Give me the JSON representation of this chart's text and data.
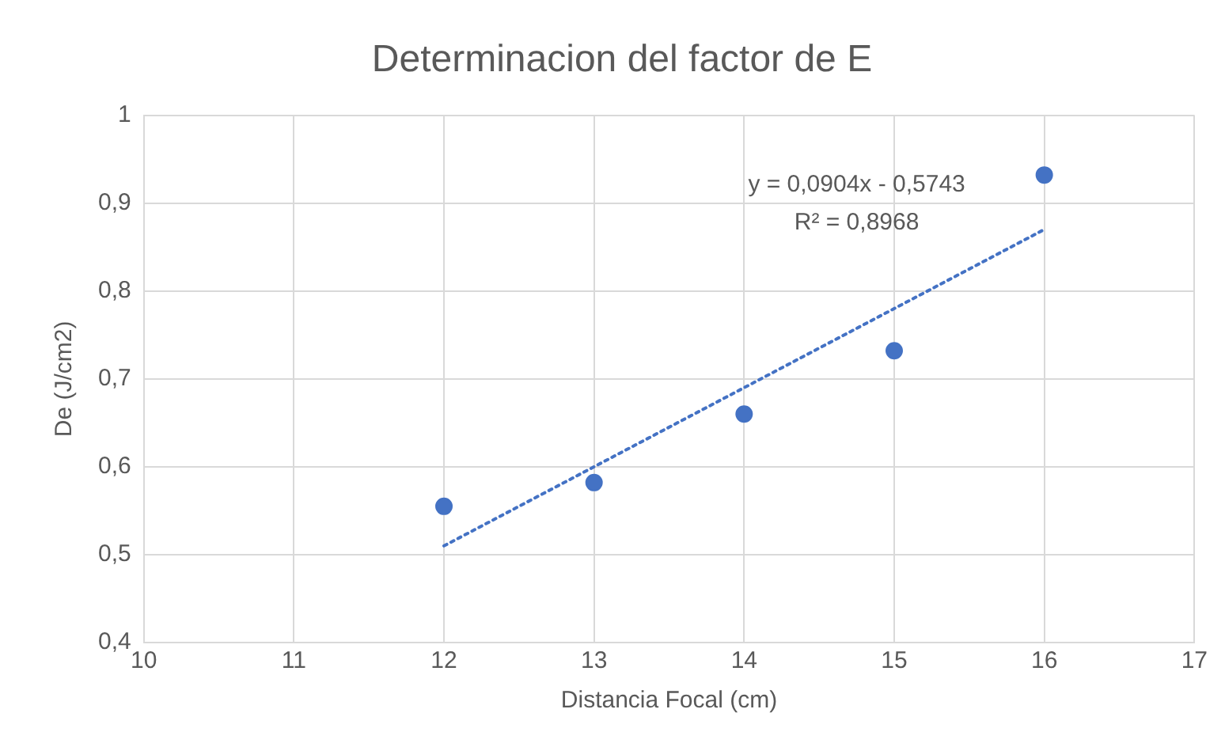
{
  "chart_data": {
    "type": "scatter",
    "title": "Determinacion del factor de E",
    "xlabel": "Distancia Focal (cm)",
    "ylabel": "De (J/cm2)",
    "x": [
      12,
      13,
      14,
      15,
      16
    ],
    "series": [
      {
        "type": "scatter",
        "color": "#4472c4",
        "marker": "circle",
        "values": [
          0.555,
          0.582,
          0.66,
          0.732,
          0.932
        ]
      },
      {
        "type": "line",
        "color": "#4472c4",
        "line_style": "dotted",
        "marker": "none",
        "x": [
          12,
          16
        ],
        "values": [
          0.51,
          0.87
        ]
      }
    ],
    "xlim": [
      10,
      17
    ],
    "xticks": [
      10,
      11,
      12,
      13,
      14,
      15,
      16,
      17
    ],
    "ylim": [
      0.4,
      1
    ],
    "yticks": [
      {
        "value": 0.4,
        "label": "0,4"
      },
      {
        "value": 0.5,
        "label": "0,5"
      },
      {
        "value": 0.6,
        "label": "0,6"
      },
      {
        "value": 0.7,
        "label": "0,7"
      },
      {
        "value": 0.8,
        "label": "0,8"
      },
      {
        "value": 0.9,
        "label": "0,9"
      },
      {
        "value": 1,
        "label": "1"
      }
    ],
    "grid": true,
    "legend": false,
    "annotations": [
      "y = 0,0904x - 0,5743",
      "R² = 0,8968"
    ]
  }
}
